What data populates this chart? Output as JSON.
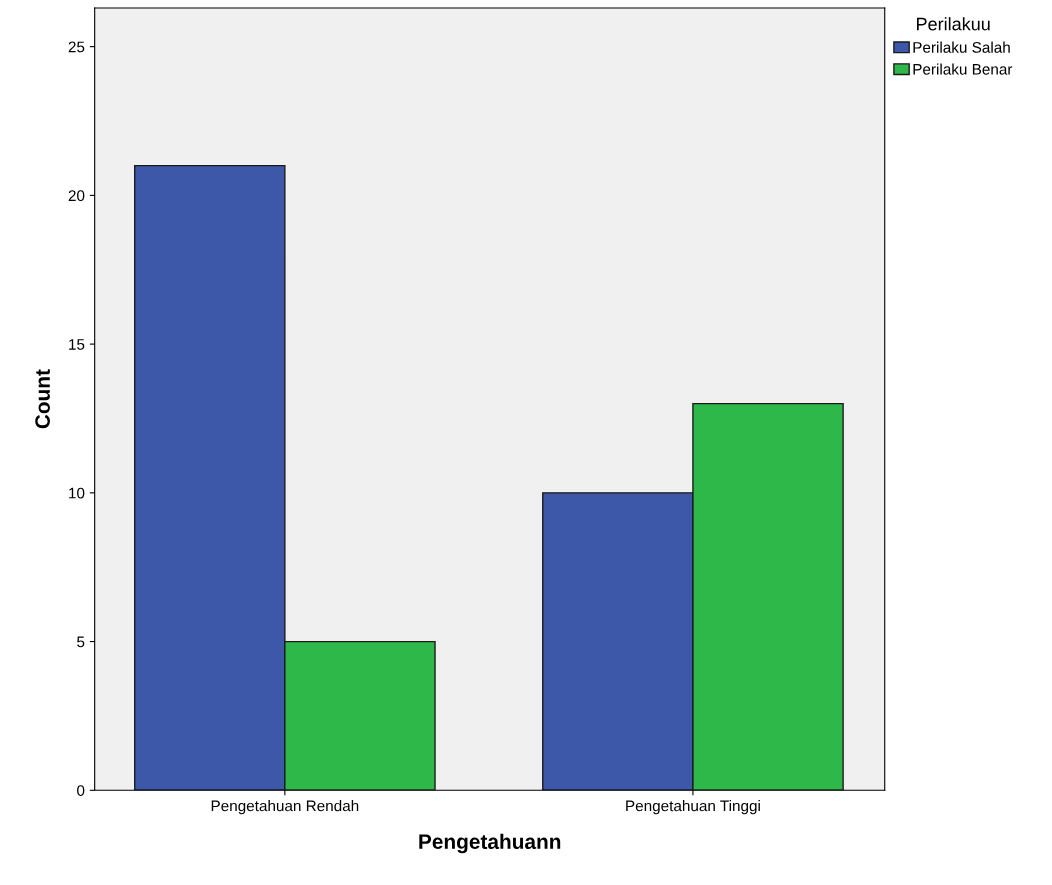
{
  "chart_data": {
    "type": "bar",
    "xlabel": "Pengetahuann",
    "ylabel": "Count",
    "legend_title": "Perilakuu",
    "categories": [
      "Pengetahuan Rendah",
      "Pengetahuan Tinggi"
    ],
    "series": [
      {
        "name": "Perilaku Salah",
        "color": "#3d58a8",
        "values": [
          21,
          10
        ]
      },
      {
        "name": "Perilaku Benar",
        "color": "#2fb84a",
        "values": [
          5,
          13
        ]
      }
    ],
    "ylim": [
      0,
      26.3
    ],
    "yticks": [
      0,
      5,
      10,
      15,
      20,
      25
    ],
    "grid": false,
    "legend": "top right"
  }
}
